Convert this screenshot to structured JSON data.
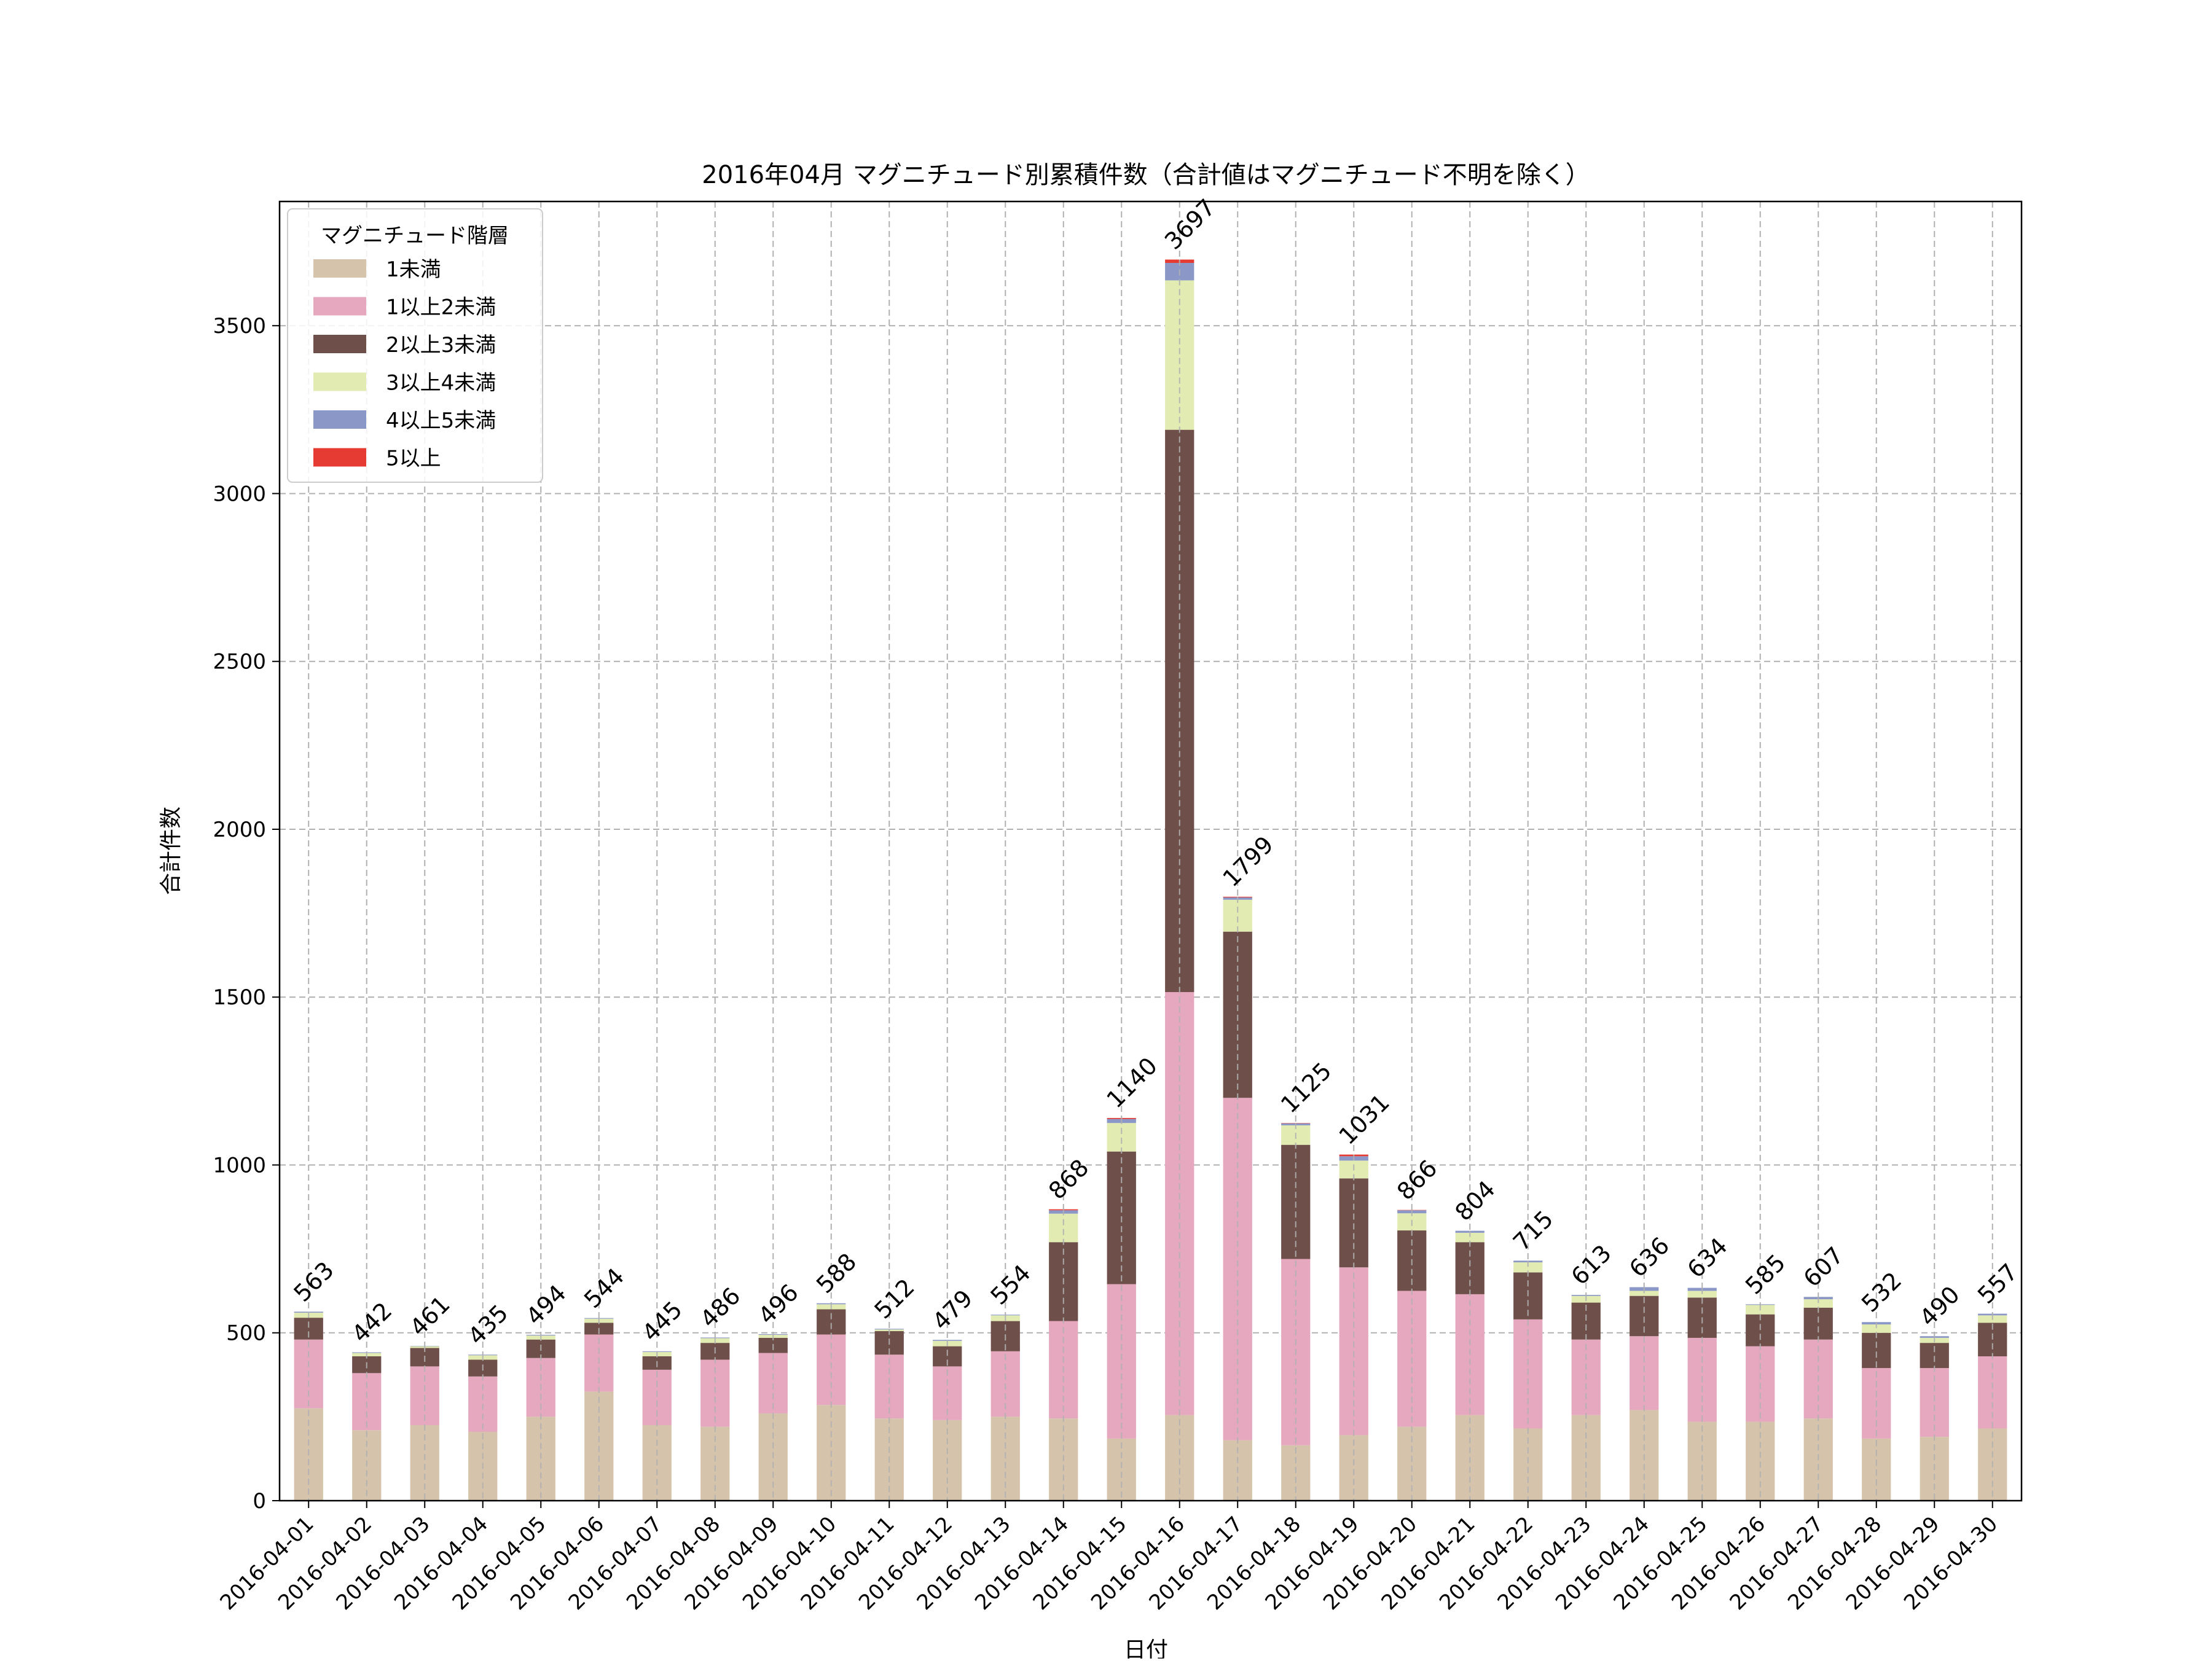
{
  "chart_data": {
    "type": "bar",
    "stacked": true,
    "title": "2016年04月 マグニチュード別累積件数（合計値はマグニチュード不明を除く）",
    "xlabel": "日付",
    "ylabel": "合計件数",
    "ylim": [
      0,
      3870
    ],
    "yticks": [
      0,
      500,
      1000,
      1500,
      2000,
      2500,
      3000,
      3500
    ],
    "grid": true,
    "legend": {
      "title": "マグニチュード階層",
      "placement": "top-left"
    },
    "categories": [
      "2016-04-01",
      "2016-04-02",
      "2016-04-03",
      "2016-04-04",
      "2016-04-05",
      "2016-04-06",
      "2016-04-07",
      "2016-04-08",
      "2016-04-09",
      "2016-04-10",
      "2016-04-11",
      "2016-04-12",
      "2016-04-13",
      "2016-04-14",
      "2016-04-15",
      "2016-04-16",
      "2016-04-17",
      "2016-04-18",
      "2016-04-19",
      "2016-04-20",
      "2016-04-21",
      "2016-04-22",
      "2016-04-23",
      "2016-04-24",
      "2016-04-25",
      "2016-04-26",
      "2016-04-27",
      "2016-04-28",
      "2016-04-29",
      "2016-04-30"
    ],
    "totals": [
      563,
      442,
      461,
      435,
      494,
      544,
      445,
      486,
      496,
      588,
      512,
      479,
      554,
      868,
      1140,
      3697,
      1799,
      1125,
      1031,
      866,
      804,
      715,
      613,
      636,
      634,
      585,
      607,
      532,
      490,
      557
    ],
    "series": [
      {
        "name": "1未満",
        "color": "#d5c4ab",
        "values": [
          275,
          210,
          225,
          205,
          250,
          325,
          225,
          220,
          260,
          285,
          245,
          240,
          250,
          245,
          185,
          255,
          180,
          165,
          195,
          220,
          255,
          215,
          255,
          270,
          235,
          235,
          245,
          185,
          190,
          215
        ]
      },
      {
        "name": "1以上2未満",
        "color": "#e5a8be",
        "values": [
          205,
          170,
          175,
          165,
          175,
          170,
          165,
          200,
          180,
          210,
          190,
          160,
          195,
          290,
          460,
          1260,
          1020,
          555,
          500,
          405,
          360,
          325,
          225,
          220,
          250,
          225,
          235,
          210,
          205,
          215
        ]
      },
      {
        "name": "2以上3未満",
        "color": "#6e4f4a",
        "values": [
          65,
          50,
          55,
          50,
          55,
          35,
          40,
          50,
          45,
          75,
          70,
          60,
          90,
          235,
          395,
          1675,
          495,
          340,
          265,
          180,
          155,
          140,
          110,
          120,
          120,
          95,
          95,
          105,
          75,
          100
        ]
      },
      {
        "name": "3以上4未満",
        "color": "#e2ebb2",
        "values": [
          15,
          10,
          5,
          13,
          12,
          12,
          13,
          14,
          9,
          15,
          5,
          16,
          17,
          85,
          85,
          445,
          95,
          58,
          53,
          51,
          28,
          30,
          20,
          15,
          20,
          28,
          25,
          25,
          15,
          22
        ]
      },
      {
        "name": "4以上5未満",
        "color": "#8b98c7",
        "values": [
          3,
          2,
          1,
          2,
          2,
          2,
          2,
          2,
          2,
          3,
          2,
          3,
          2,
          10,
          12,
          52,
          7,
          6,
          13,
          9,
          6,
          5,
          3,
          11,
          9,
          2,
          7,
          7,
          5,
          5
        ]
      },
      {
        "name": "5以上",
        "color": "#e53b32",
        "values": [
          0,
          0,
          0,
          0,
          0,
          0,
          0,
          0,
          0,
          0,
          0,
          0,
          0,
          3,
          3,
          10,
          2,
          1,
          5,
          1,
          0,
          0,
          0,
          0,
          0,
          0,
          0,
          0,
          0,
          0
        ]
      }
    ]
  }
}
